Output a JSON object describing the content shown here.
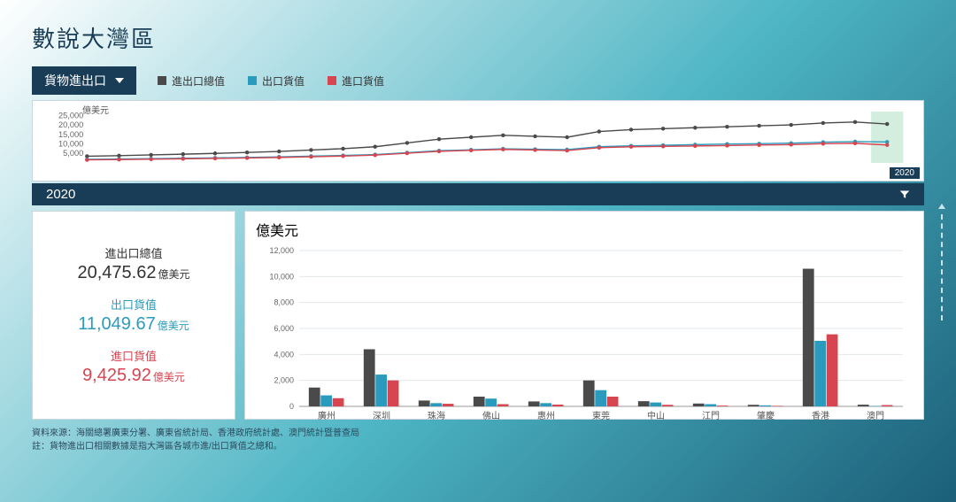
{
  "title": "數說大灣區",
  "dropdown": {
    "label": "貨物進出口"
  },
  "legend": [
    {
      "label": "進出口總值",
      "color": "#4a4a4a"
    },
    {
      "label": "出口貨值",
      "color": "#2a9bbd"
    },
    {
      "label": "進口貨值",
      "color": "#d64550"
    }
  ],
  "selected_year": "2020",
  "mini_chart": {
    "y_axis_label": "億美元",
    "y_ticks": [
      5000,
      10000,
      15000,
      20000,
      25000
    ],
    "y_max": 27000,
    "series_colors": {
      "total": "#4a4a4a",
      "export": "#2a9bbd",
      "import": "#d64550"
    },
    "points": 26,
    "total": [
      3500,
      3800,
      4200,
      4600,
      5000,
      5500,
      6000,
      6800,
      7500,
      8500,
      10500,
      12500,
      13500,
      14500,
      14000,
      13500,
      16500,
      17500,
      18000,
      18500,
      19000,
      19500,
      20000,
      21000,
      21500,
      20475
    ],
    "export": [
      1900,
      2050,
      2250,
      2450,
      2650,
      2900,
      3150,
      3550,
      3900,
      4400,
      5400,
      6400,
      6900,
      7400,
      7200,
      7000,
      8500,
      9000,
      9300,
      9600,
      9900,
      10100,
      10400,
      10900,
      11200,
      11050
    ],
    "import": [
      1600,
      1750,
      1950,
      2150,
      2350,
      2600,
      2850,
      3250,
      3600,
      4100,
      5100,
      6100,
      6600,
      7100,
      6800,
      6500,
      8000,
      8500,
      8700,
      8900,
      9100,
      9400,
      9600,
      10100,
      10300,
      9425
    ],
    "highlight_last": true,
    "highlight_color": "#b6e2c8",
    "marker_radius": 2.2,
    "line_width": 1.4,
    "year_flag": "2020"
  },
  "stats": {
    "total": {
      "label": "進出口總值",
      "value": "20,475.62",
      "unit": "億美元"
    },
    "export": {
      "label": "出口貨值",
      "value": "11,049.67",
      "unit": "億美元"
    },
    "import": {
      "label": "進口貨值",
      "value": "9,425.92",
      "unit": "億美元"
    }
  },
  "bar_chart": {
    "y_axis_label": "億美元",
    "y_ticks": [
      0,
      2000,
      4000,
      6000,
      8000,
      10000,
      12000
    ],
    "y_max": 12000,
    "categories": [
      "廣州",
      "深圳",
      "珠海",
      "佛山",
      "惠州",
      "東莞",
      "中山",
      "江門",
      "肇慶",
      "香港",
      "澳門"
    ],
    "series": [
      {
        "key": "total",
        "color": "#4a4a4a"
      },
      {
        "key": "export",
        "color": "#2a9bbd"
      },
      {
        "key": "import",
        "color": "#d64550"
      }
    ],
    "data": {
      "total": [
        1450,
        4400,
        450,
        750,
        380,
        2000,
        400,
        220,
        120,
        10600,
        130
      ],
      "export": [
        850,
        2450,
        250,
        600,
        250,
        1250,
        300,
        170,
        80,
        5050,
        30
      ],
      "import": [
        630,
        2000,
        200,
        170,
        140,
        750,
        120,
        60,
        40,
        5550,
        100
      ]
    },
    "bar_group_gap": 0.35,
    "bar_inner_gap": 0.05
  },
  "footnotes": [
    "資料來源：海關總署廣東分署、廣東省統計局、香港政府統計處、澳門統計暨普查局",
    "註：貨物進出口相關數據是指大灣區各城市進/出口貨值之總和。"
  ]
}
